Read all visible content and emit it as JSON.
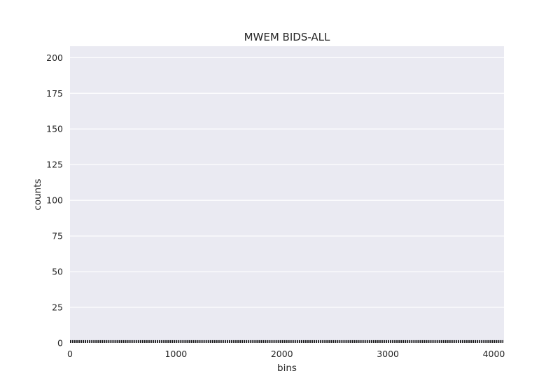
{
  "chart_data": {
    "type": "bar",
    "title": "MWEM BIDS-ALL",
    "xlabel": "bins",
    "ylabel": "counts",
    "xlim": [
      0,
      4096
    ],
    "ylim": [
      0,
      208
    ],
    "xticks": [
      0,
      1000,
      2000,
      3000,
      4000
    ],
    "yticks": [
      0,
      25,
      50,
      75,
      100,
      125,
      150,
      175,
      200
    ],
    "grid": true,
    "bin_start": 0,
    "bin_width": 20,
    "bin_count": 205,
    "values_note": "",
    "values": [
      2,
      2,
      2,
      2,
      2,
      2,
      2,
      2,
      2,
      2,
      2,
      2,
      2,
      2,
      2,
      2,
      2,
      2,
      2,
      2,
      2,
      2,
      2,
      2,
      2,
      2,
      2,
      2,
      2,
      2,
      2,
      2,
      2,
      2,
      2,
      2,
      2,
      2,
      2,
      2,
      2,
      2,
      2,
      2,
      2,
      2,
      2,
      2,
      2,
      2,
      2,
      2,
      2,
      2,
      2,
      2,
      2,
      2,
      2,
      2,
      2,
      2,
      2,
      2,
      2,
      2,
      2,
      2,
      2,
      2,
      2,
      2,
      2,
      2,
      2,
      2,
      2,
      2,
      2,
      2,
      2,
      2,
      2,
      2,
      2,
      2,
      2,
      2,
      2,
      2,
      2,
      2,
      2,
      2,
      2,
      2,
      2,
      2,
      2,
      2,
      2,
      2,
      2,
      2,
      2,
      2,
      2,
      2,
      2,
      2,
      2,
      2,
      2,
      2,
      2,
      2,
      2,
      2,
      2,
      2,
      2,
      2,
      2,
      2,
      2,
      2,
      2,
      2,
      2,
      2,
      2,
      2,
      2,
      2,
      2,
      2,
      2,
      2,
      2,
      2,
      2,
      2,
      2,
      2,
      2,
      2,
      2,
      2,
      2,
      2,
      2,
      2,
      2,
      2,
      2,
      2,
      2,
      2,
      2,
      2,
      2,
      2,
      2,
      2,
      2,
      2,
      2,
      2,
      2,
      2,
      2,
      2,
      2,
      2,
      2,
      2,
      2,
      2,
      2,
      2,
      2,
      2,
      2,
      2,
      2,
      2,
      2,
      2,
      2,
      2,
      2,
      2,
      2,
      2,
      2,
      2,
      2,
      2,
      2,
      2,
      2,
      2,
      2,
      2,
      2
    ],
    "bar_color": "#1a1a1a",
    "background_color": "#eaeaf2",
    "grid_color": "#ffffff"
  }
}
